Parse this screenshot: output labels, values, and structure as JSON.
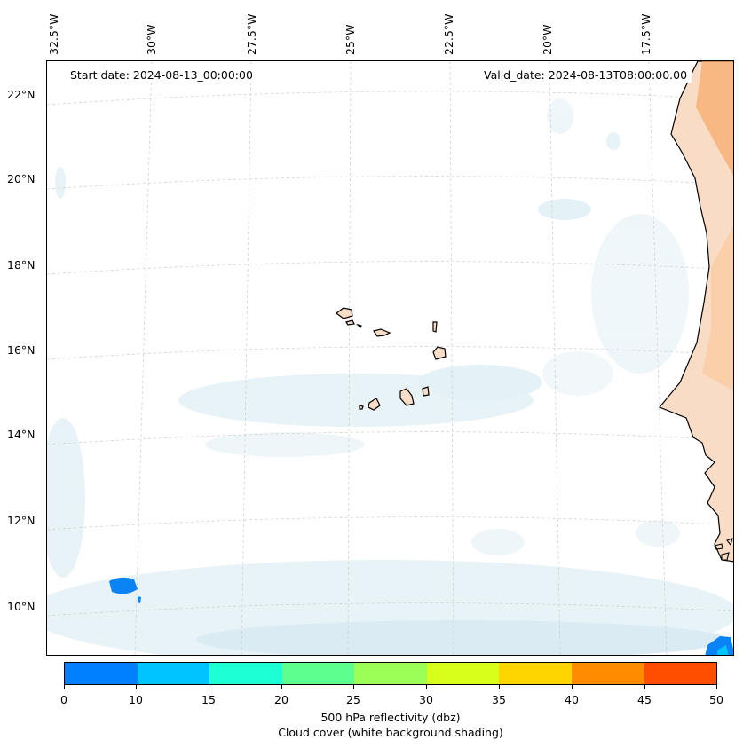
{
  "map": {
    "start_date": "Start date: 2024-08-13_00:00:00",
    "valid_date": "Valid_date: 2024-08-13T08:00:00.00",
    "lon_labels": [
      "32.5°W",
      "30°W",
      "27.5°W",
      "25°W",
      "22.5°W",
      "20°W",
      "17.5°W"
    ],
    "lat_labels": [
      "22°N",
      "20°N",
      "18°N",
      "16°N",
      "14°N",
      "12°N",
      "10°N"
    ],
    "land_color": "#f9dcc6",
    "coast_color": "#000000",
    "cloud_color": "#d6eaf2",
    "reflectivity_color": "#0a84f5"
  },
  "colorbar": {
    "ticks": [
      "0",
      "10",
      "15",
      "20",
      "25",
      "30",
      "35",
      "40",
      "45",
      "50"
    ],
    "colors": [
      "#0080ff",
      "#00c4ff",
      "#1dffd4",
      "#5dff8f",
      "#9cff55",
      "#d8ff1c",
      "#ffd500",
      "#ff8c00",
      "#ff4e00"
    ],
    "label_main": "500 hPa reflectivity (dbz)",
    "label_sub": "Cloud cover (white background shading)"
  }
}
